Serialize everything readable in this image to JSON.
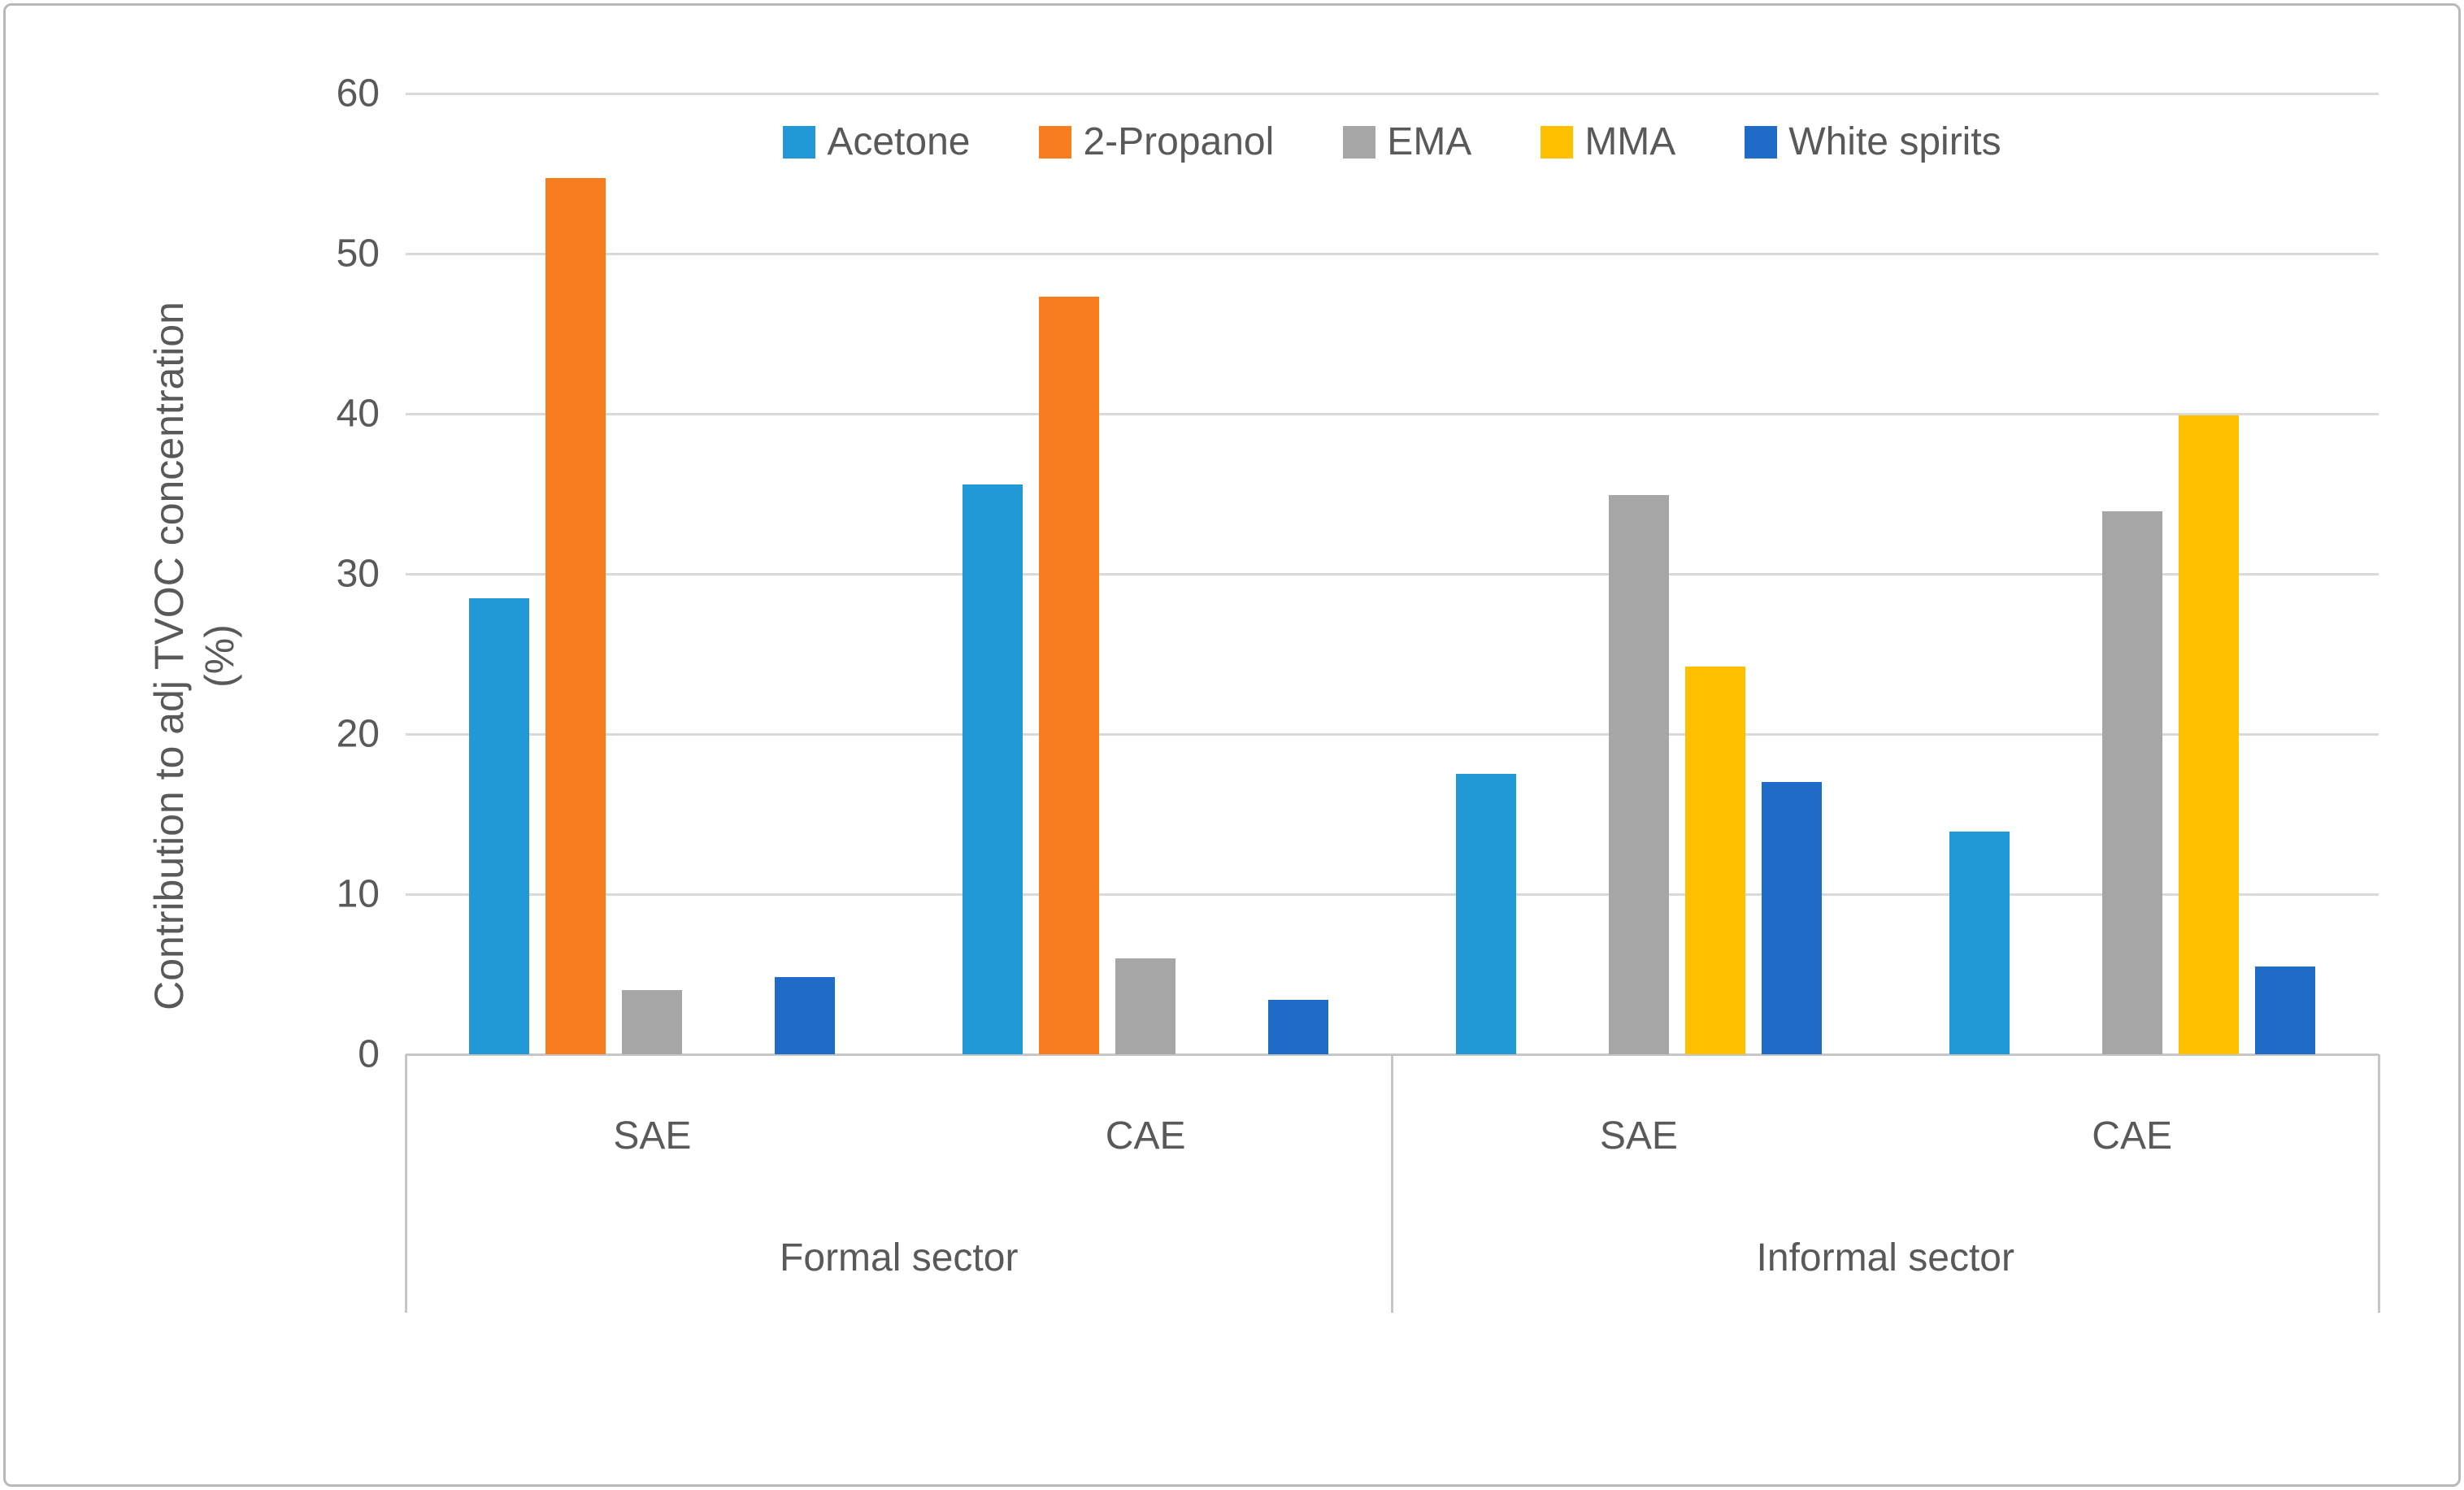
{
  "figure": {
    "background": "#ffffff",
    "border_color": "#b9b9b9",
    "text_color": "#595959",
    "gridline_color": "#d9d9d9",
    "axis_line_color": "#c6c6c6"
  },
  "chart_data": {
    "type": "bar",
    "title": "",
    "ylabel_line1": "Contribution to adj TVOC concentration",
    "ylabel_line2": "(%)",
    "ylim": [
      0,
      60
    ],
    "yticks": [
      0,
      10,
      20,
      30,
      40,
      50,
      60
    ],
    "grid": true,
    "legend_position": "top-center",
    "categories": [
      "SAE",
      "CAE",
      "SAE",
      "CAE"
    ],
    "category_groups": [
      {
        "label": "Formal sector",
        "span": [
          0,
          1
        ]
      },
      {
        "label": "Informal sector",
        "span": [
          2,
          3
        ]
      }
    ],
    "series": [
      {
        "name": "Acetone",
        "color": "#2199d6",
        "values": [
          28.5,
          35.6,
          17.5,
          13.9
        ]
      },
      {
        "name": "2-Propanol",
        "color": "#f87d1e",
        "values": [
          54.7,
          47.3,
          0,
          0
        ]
      },
      {
        "name": "EMA",
        "color": "#a6a6a6",
        "values": [
          4.0,
          6.0,
          34.9,
          33.9
        ]
      },
      {
        "name": "MMA",
        "color": "#ffc000",
        "values": [
          0,
          0,
          24.2,
          39.9
        ]
      },
      {
        "name": "White spirits",
        "color": "#1e6bc8",
        "values": [
          4.8,
          3.4,
          17.0,
          5.5
        ]
      }
    ]
  }
}
